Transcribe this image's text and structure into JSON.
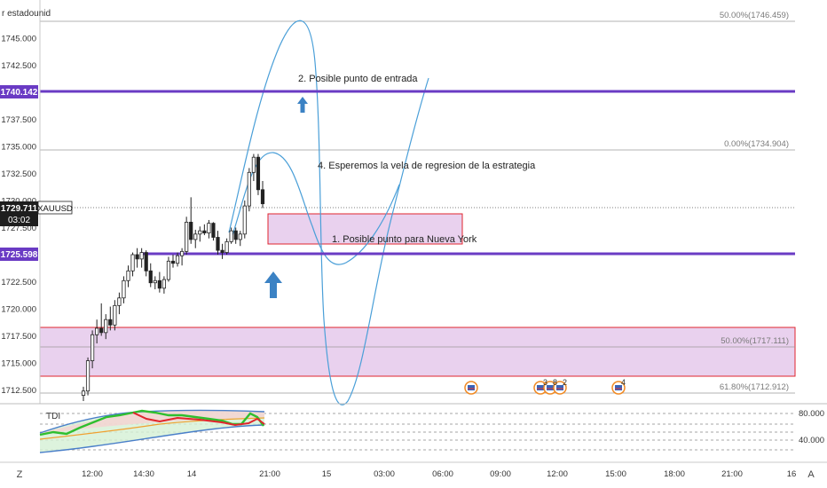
{
  "symbol": "XAUUSD",
  "symbol_title_fragment": "r estadounid",
  "current_price": "1729.711",
  "countdown": "03:02",
  "price_scale": {
    "ticks": [
      "1745.000",
      "1742.500",
      "1740.000",
      "1737.500",
      "1735.000",
      "1732.500",
      "1730.000",
      "1727.500",
      "1725.000",
      "1722.500",
      "1720.000",
      "1717.500",
      "1715.000",
      "1712.500"
    ],
    "label_line_high": "1740.142",
    "label_line_low": "1725.598"
  },
  "time_axis": {
    "labels": [
      "12:00",
      "14:30",
      "14",
      "21:00",
      "15",
      "03:00",
      "06:00",
      "09:00",
      "12:00",
      "15:00",
      "18:00",
      "21:00",
      "16"
    ]
  },
  "fib_labels": {
    "top_50": "50.00%(1746.459)",
    "zero": "0.00%(1734.904)",
    "lower_50": "50.00%(1717.111)",
    "lower_618": "61.80%(1712.912)"
  },
  "annotations": {
    "entry": "2. Posible punto de entrada",
    "regression": "4. Esperemos la vela de regresion de la estrategia",
    "new_york": "1. Posible punto para Nueva York"
  },
  "events": [
    "3",
    "8",
    "2",
    "4"
  ],
  "indicator": {
    "name": "TDI",
    "scale": [
      "80.000",
      "40.000"
    ]
  },
  "buttons": {
    "left_corner": "Z",
    "right_corner": "A"
  },
  "colors": {
    "purple_line": "#6a3bc4",
    "zone_fill": "#e9d1ee",
    "zone_border": "#e0252d",
    "arrow_blue": "#3b82c4",
    "path_blue": "#4a9fd8",
    "candle": "#222222"
  },
  "candles": [
    [
      1712.0,
      1712.8,
      1710.5,
      1712.4
    ],
    [
      1712.4,
      1715.5,
      1712.0,
      1715.2
    ],
    [
      1715.2,
      1718.0,
      1714.5,
      1717.6
    ],
    [
      1717.6,
      1719.0,
      1716.8,
      1718.2
    ],
    [
      1718.2,
      1720.5,
      1717.5,
      1717.8
    ],
    [
      1717.8,
      1719.5,
      1717.2,
      1719.0
    ],
    [
      1719.0,
      1720.2,
      1718.0,
      1718.5
    ],
    [
      1718.5,
      1720.8,
      1718.0,
      1720.3
    ],
    [
      1720.3,
      1721.5,
      1719.5,
      1721.0
    ],
    [
      1721.0,
      1723.0,
      1720.5,
      1722.6
    ],
    [
      1722.6,
      1724.0,
      1722.0,
      1723.5
    ],
    [
      1723.5,
      1725.2,
      1723.0,
      1725.0
    ],
    [
      1725.0,
      1725.6,
      1723.8,
      1724.6
    ],
    [
      1724.6,
      1725.6,
      1723.8,
      1725.2
    ],
    [
      1725.2,
      1725.4,
      1723.0,
      1723.5
    ],
    [
      1723.5,
      1724.2,
      1722.0,
      1722.4
    ],
    [
      1722.4,
      1723.0,
      1721.8,
      1722.6
    ],
    [
      1722.6,
      1723.4,
      1721.5,
      1721.9
    ],
    [
      1721.9,
      1723.0,
      1721.4,
      1722.7
    ],
    [
      1722.7,
      1724.8,
      1722.5,
      1724.4
    ],
    [
      1724.4,
      1725.0,
      1723.8,
      1724.2
    ],
    [
      1724.2,
      1725.2,
      1723.9,
      1724.9
    ],
    [
      1724.9,
      1725.6,
      1724.0,
      1725.3
    ],
    [
      1725.3,
      1728.5,
      1725.0,
      1728.0
    ],
    [
      1728.0,
      1730.3,
      1726.0,
      1726.4
    ],
    [
      1726.4,
      1727.3,
      1725.6,
      1726.9
    ],
    [
      1726.9,
      1727.6,
      1726.2,
      1727.2
    ],
    [
      1727.2,
      1727.8,
      1726.8,
      1727.0
    ],
    [
      1727.0,
      1728.2,
      1726.5,
      1727.9
    ],
    [
      1727.9,
      1728.0,
      1726.3,
      1726.6
    ],
    [
      1726.6,
      1727.2,
      1725.0,
      1725.4
    ],
    [
      1725.4,
      1726.0,
      1724.6,
      1725.2
    ],
    [
      1725.2,
      1726.5,
      1725.0,
      1726.2
    ],
    [
      1726.2,
      1727.5,
      1726.0,
      1727.2
    ],
    [
      1727.2,
      1727.5,
      1726.0,
      1726.4
    ],
    [
      1726.4,
      1727.2,
      1725.8,
      1726.9
    ],
    [
      1726.9,
      1730.0,
      1726.5,
      1729.5
    ],
    [
      1729.5,
      1733.0,
      1729.0,
      1732.6
    ],
    [
      1732.6,
      1734.3,
      1731.8,
      1734.0
    ],
    [
      1734.0,
      1734.3,
      1730.5,
      1731.0
    ],
    [
      1731.0,
      1731.8,
      1729.3,
      1729.7
    ]
  ]
}
